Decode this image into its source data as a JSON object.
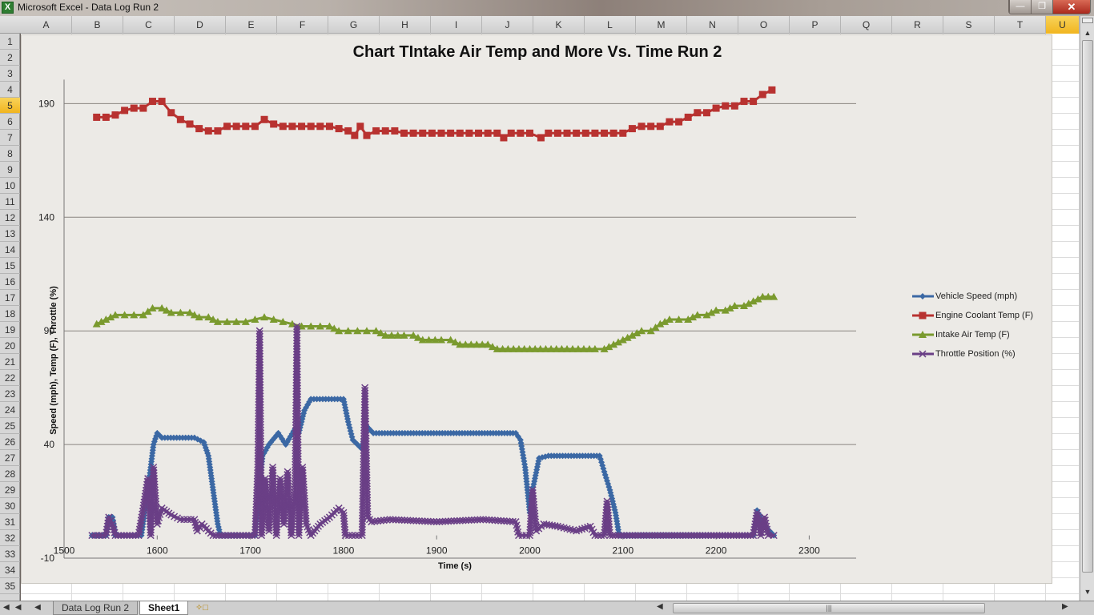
{
  "window": {
    "app_icon": "excel-icon",
    "title": "Microsoft Excel - Data Log Run 2",
    "controls": [
      "minimize",
      "restore",
      "close"
    ]
  },
  "spreadsheet": {
    "columns": [
      "A",
      "B",
      "C",
      "D",
      "E",
      "F",
      "G",
      "H",
      "I",
      "J",
      "K",
      "L",
      "M",
      "N",
      "O",
      "P",
      "Q",
      "R",
      "S",
      "T",
      "U"
    ],
    "selected_column": "U",
    "rows": [
      "1",
      "2",
      "3",
      "4",
      "5",
      "6",
      "7",
      "8",
      "9",
      "10",
      "11",
      "12",
      "13",
      "14",
      "15",
      "16",
      "17",
      "18",
      "19",
      "20",
      "21",
      "22",
      "23",
      "24",
      "25",
      "26",
      "27",
      "28",
      "29",
      "30",
      "31",
      "32",
      "33",
      "34",
      "35"
    ],
    "selected_row": "5"
  },
  "sheet_tabs": {
    "tabs": [
      {
        "label": "Data Log Run 2",
        "active": false
      },
      {
        "label": "Sheet1",
        "active": true
      }
    ],
    "new_sheet_icon": "insert-worksheet-icon"
  },
  "chart_data": {
    "type": "line",
    "title": "Chart TIntake Air Temp and More Vs. Time Run 2",
    "xlabel": "Time (s)",
    "ylabel": "Speed (mph), Temp (F), Throttle (%)",
    "xlim": [
      1500,
      2300
    ],
    "ylim": [
      -10,
      190
    ],
    "x_ticks": [
      1500,
      1600,
      1700,
      1800,
      1900,
      2000,
      2100,
      2200,
      2300
    ],
    "y_ticks": [
      -10,
      40,
      90,
      140,
      190
    ],
    "grid": "horizontal major gridlines",
    "legend_position": "right",
    "series": [
      {
        "name": "Vehicle Speed (mph)",
        "color": "#3b68a4",
        "marker": "diamond",
        "points": [
          [
            1530,
            0
          ],
          [
            1545,
            0
          ],
          [
            1548,
            8
          ],
          [
            1552,
            8
          ],
          [
            1555,
            0
          ],
          [
            1583,
            0
          ],
          [
            1590,
            20
          ],
          [
            1596,
            40
          ],
          [
            1600,
            45
          ],
          [
            1605,
            43
          ],
          [
            1640,
            43
          ],
          [
            1650,
            41
          ],
          [
            1655,
            35
          ],
          [
            1660,
            20
          ],
          [
            1665,
            5
          ],
          [
            1668,
            0
          ],
          [
            1705,
            0
          ],
          [
            1710,
            20
          ],
          [
            1713,
            35
          ],
          [
            1720,
            40
          ],
          [
            1730,
            45
          ],
          [
            1738,
            40
          ],
          [
            1748,
            47
          ],
          [
            1752,
            45
          ],
          [
            1758,
            55
          ],
          [
            1765,
            60
          ],
          [
            1800,
            60
          ],
          [
            1805,
            50
          ],
          [
            1810,
            42
          ],
          [
            1820,
            38
          ],
          [
            1825,
            48
          ],
          [
            1832,
            45
          ],
          [
            1900,
            45
          ],
          [
            1985,
            45
          ],
          [
            1990,
            42
          ],
          [
            1995,
            30
          ],
          [
            2000,
            10
          ],
          [
            2003,
            20
          ],
          [
            2010,
            34
          ],
          [
            2020,
            35
          ],
          [
            2075,
            35
          ],
          [
            2080,
            28
          ],
          [
            2086,
            20
          ],
          [
            2092,
            10
          ],
          [
            2096,
            0
          ],
          [
            2240,
            0
          ],
          [
            2244,
            11
          ],
          [
            2250,
            6
          ],
          [
            2255,
            3
          ],
          [
            2262,
            0
          ]
        ]
      },
      {
        "name": "Engine Coolant Temp (F)",
        "color": "#b83230",
        "marker": "square",
        "points": [
          [
            1535,
            184
          ],
          [
            1545,
            184
          ],
          [
            1555,
            185
          ],
          [
            1565,
            187
          ],
          [
            1575,
            188
          ],
          [
            1585,
            188
          ],
          [
            1595,
            191
          ],
          [
            1605,
            191
          ],
          [
            1615,
            186
          ],
          [
            1625,
            183
          ],
          [
            1635,
            181
          ],
          [
            1645,
            179
          ],
          [
            1655,
            178
          ],
          [
            1665,
            178
          ],
          [
            1675,
            180
          ],
          [
            1685,
            180
          ],
          [
            1695,
            180
          ],
          [
            1705,
            180
          ],
          [
            1715,
            183
          ],
          [
            1725,
            181
          ],
          [
            1735,
            180
          ],
          [
            1745,
            180
          ],
          [
            1755,
            180
          ],
          [
            1765,
            180
          ],
          [
            1775,
            180
          ],
          [
            1785,
            180
          ],
          [
            1795,
            179
          ],
          [
            1805,
            178
          ],
          [
            1812,
            176
          ],
          [
            1818,
            180
          ],
          [
            1825,
            176
          ],
          [
            1835,
            178
          ],
          [
            1845,
            178
          ],
          [
            1855,
            178
          ],
          [
            1865,
            177
          ],
          [
            1875,
            177
          ],
          [
            1885,
            177
          ],
          [
            1895,
            177
          ],
          [
            1905,
            177
          ],
          [
            1915,
            177
          ],
          [
            1925,
            177
          ],
          [
            1935,
            177
          ],
          [
            1945,
            177
          ],
          [
            1955,
            177
          ],
          [
            1965,
            177
          ],
          [
            1972,
            175
          ],
          [
            1980,
            177
          ],
          [
            1990,
            177
          ],
          [
            2000,
            177
          ],
          [
            2012,
            175
          ],
          [
            2020,
            177
          ],
          [
            2030,
            177
          ],
          [
            2040,
            177
          ],
          [
            2050,
            177
          ],
          [
            2060,
            177
          ],
          [
            2070,
            177
          ],
          [
            2080,
            177
          ],
          [
            2090,
            177
          ],
          [
            2100,
            177
          ],
          [
            2110,
            179
          ],
          [
            2120,
            180
          ],
          [
            2130,
            180
          ],
          [
            2140,
            180
          ],
          [
            2150,
            182
          ],
          [
            2160,
            182
          ],
          [
            2170,
            184
          ],
          [
            2180,
            186
          ],
          [
            2190,
            186
          ],
          [
            2200,
            188
          ],
          [
            2210,
            189
          ],
          [
            2220,
            189
          ],
          [
            2230,
            191
          ],
          [
            2240,
            191
          ],
          [
            2250,
            194
          ],
          [
            2260,
            196
          ]
        ]
      },
      {
        "name": "Intake Air Temp (F)",
        "color": "#7a9a2e",
        "marker": "triangle",
        "points": [
          [
            1535,
            93
          ],
          [
            1545,
            95
          ],
          [
            1555,
            97
          ],
          [
            1565,
            97
          ],
          [
            1575,
            97
          ],
          [
            1585,
            97
          ],
          [
            1595,
            100
          ],
          [
            1605,
            100
          ],
          [
            1615,
            98
          ],
          [
            1625,
            98
          ],
          [
            1635,
            98
          ],
          [
            1645,
            96
          ],
          [
            1655,
            96
          ],
          [
            1665,
            94
          ],
          [
            1675,
            94
          ],
          [
            1685,
            94
          ],
          [
            1695,
            94
          ],
          [
            1705,
            95
          ],
          [
            1715,
            96
          ],
          [
            1725,
            95
          ],
          [
            1735,
            94
          ],
          [
            1745,
            93
          ],
          [
            1755,
            92
          ],
          [
            1765,
            92
          ],
          [
            1775,
            92
          ],
          [
            1785,
            92
          ],
          [
            1795,
            90
          ],
          [
            1805,
            90
          ],
          [
            1815,
            90
          ],
          [
            1825,
            90
          ],
          [
            1835,
            90
          ],
          [
            1845,
            88
          ],
          [
            1865,
            88
          ],
          [
            1875,
            88
          ],
          [
            1885,
            86
          ],
          [
            1905,
            86
          ],
          [
            1915,
            86
          ],
          [
            1925,
            84
          ],
          [
            1955,
            84
          ],
          [
            1965,
            82
          ],
          [
            2000,
            82
          ],
          [
            2040,
            82
          ],
          [
            2070,
            82
          ],
          [
            2080,
            82
          ],
          [
            2090,
            84
          ],
          [
            2100,
            86
          ],
          [
            2110,
            88
          ],
          [
            2120,
            90
          ],
          [
            2130,
            90
          ],
          [
            2140,
            93
          ],
          [
            2150,
            95
          ],
          [
            2160,
            95
          ],
          [
            2170,
            95
          ],
          [
            2180,
            97
          ],
          [
            2190,
            97
          ],
          [
            2200,
            99
          ],
          [
            2210,
            99
          ],
          [
            2220,
            101
          ],
          [
            2230,
            101
          ],
          [
            2240,
            103
          ],
          [
            2250,
            105
          ],
          [
            2262,
            105
          ]
        ]
      },
      {
        "name": "Throttle Position (%)",
        "color": "#6a3f86",
        "marker": "x",
        "points": [
          [
            1530,
            0
          ],
          [
            1545,
            0
          ],
          [
            1548,
            8
          ],
          [
            1552,
            5
          ],
          [
            1555,
            0
          ],
          [
            1580,
            0
          ],
          [
            1585,
            12
          ],
          [
            1590,
            25
          ],
          [
            1593,
            0
          ],
          [
            1596,
            30
          ],
          [
            1600,
            5
          ],
          [
            1605,
            12
          ],
          [
            1615,
            9
          ],
          [
            1625,
            7
          ],
          [
            1640,
            7
          ],
          [
            1643,
            2
          ],
          [
            1648,
            5
          ],
          [
            1655,
            2
          ],
          [
            1660,
            0
          ],
          [
            1705,
            0
          ],
          [
            1708,
            30
          ],
          [
            1710,
            90
          ],
          [
            1712,
            0
          ],
          [
            1716,
            25
          ],
          [
            1720,
            2
          ],
          [
            1724,
            30
          ],
          [
            1728,
            0
          ],
          [
            1732,
            25
          ],
          [
            1736,
            5
          ],
          [
            1740,
            28
          ],
          [
            1744,
            0
          ],
          [
            1748,
            20
          ],
          [
            1750,
            92
          ],
          [
            1752,
            0
          ],
          [
            1756,
            30
          ],
          [
            1760,
            5
          ],
          [
            1765,
            0
          ],
          [
            1775,
            5
          ],
          [
            1785,
            8
          ],
          [
            1795,
            12
          ],
          [
            1800,
            10
          ],
          [
            1802,
            0
          ],
          [
            1820,
            0
          ],
          [
            1823,
            65
          ],
          [
            1826,
            8
          ],
          [
            1830,
            6
          ],
          [
            1850,
            7
          ],
          [
            1900,
            6
          ],
          [
            1950,
            7
          ],
          [
            1985,
            6
          ],
          [
            1988,
            0
          ],
          [
            2000,
            0
          ],
          [
            2003,
            20
          ],
          [
            2007,
            2
          ],
          [
            2015,
            5
          ],
          [
            2030,
            4
          ],
          [
            2050,
            2
          ],
          [
            2065,
            4
          ],
          [
            2070,
            0
          ],
          [
            2080,
            0
          ],
          [
            2083,
            15
          ],
          [
            2086,
            0
          ],
          [
            2240,
            0
          ],
          [
            2244,
            10
          ],
          [
            2248,
            0
          ],
          [
            2252,
            8
          ],
          [
            2256,
            0
          ],
          [
            2262,
            0
          ]
        ]
      }
    ]
  }
}
